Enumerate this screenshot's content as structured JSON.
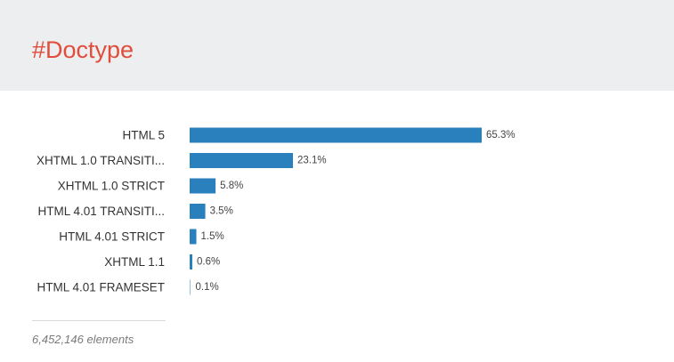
{
  "header": {
    "title": "#Doctype"
  },
  "chart_data": {
    "type": "bar",
    "orientation": "horizontal",
    "categories": [
      "HTML 5",
      "XHTML 1.0 TRANSITI...",
      "XHTML 1.0 STRICT",
      "HTML 4.01 TRANSITI...",
      "HTML 4.01 STRICT",
      "XHTML 1.1",
      "HTML 4.01 FRAMESET"
    ],
    "values": [
      65.3,
      23.1,
      5.8,
      3.5,
      1.5,
      0.6,
      0.1
    ],
    "value_labels": [
      "65.3%",
      "23.1%",
      "5.8%",
      "3.5%",
      "1.5%",
      "0.6%",
      "0.1%"
    ],
    "unit": "%",
    "xlim": [
      0,
      65.3
    ],
    "grid": false,
    "legend": "none",
    "bar_color": "#2a7fbd"
  },
  "footer": {
    "count": "6,452,146 elements"
  },
  "colors": {
    "title": "#e14c3c",
    "header_bg": "#eceeef"
  }
}
